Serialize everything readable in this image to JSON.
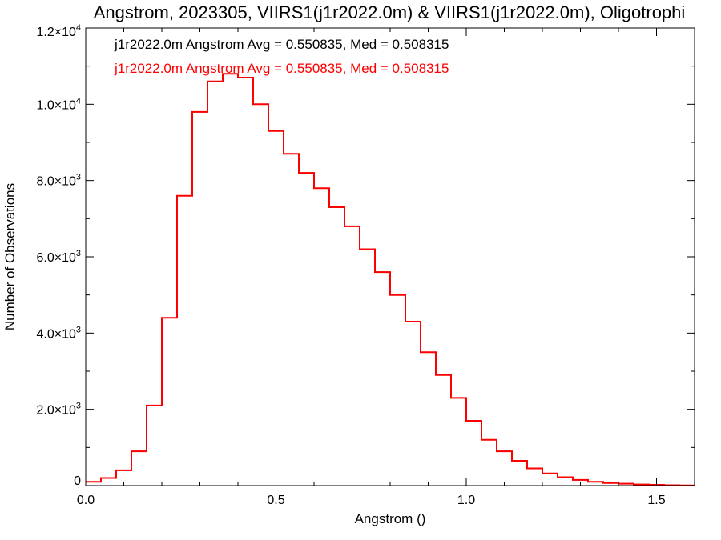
{
  "chart_data": {
    "type": "histogram",
    "title": "Angstrom, 2023305, VIIRS1(j1r2022.0m) & VIIRS1(j1r2022.0m), Oligotrophi",
    "xlabel": "Angstrom ()",
    "ylabel": "Number of Observations",
    "xlim": [
      0.0,
      1.6
    ],
    "ylim": [
      0,
      12000
    ],
    "x_ticks": [
      {
        "value": 0.0,
        "label": "0.0"
      },
      {
        "value": 0.5,
        "label": "0.5"
      },
      {
        "value": 1.0,
        "label": "1.0"
      },
      {
        "value": 1.5,
        "label": "1.5"
      }
    ],
    "y_ticks": [
      {
        "value": 0,
        "label": "0"
      },
      {
        "value": 2000,
        "label": "2.0×10",
        "exp": "3"
      },
      {
        "value": 4000,
        "label": "4.0×10",
        "exp": "3"
      },
      {
        "value": 6000,
        "label": "6.0×10",
        "exp": "3"
      },
      {
        "value": 8000,
        "label": "8.0×10",
        "exp": "3"
      },
      {
        "value": 10000,
        "label": "1.0×10",
        "exp": "4"
      },
      {
        "value": 12000,
        "label": "1.2×10",
        "exp": "4"
      }
    ],
    "annotations": [
      {
        "text": "j1r2022.0m Angstrom Avg = 0.550835, Med = 0.508315",
        "color": "#000000"
      },
      {
        "text": "j1r2022.0m Angstrom Avg = 0.550835, Med = 0.508315",
        "color": "#ff0000"
      }
    ],
    "bin_width": 0.04,
    "x": [
      0.0,
      0.04,
      0.08,
      0.12,
      0.16,
      0.2,
      0.24,
      0.28,
      0.32,
      0.36,
      0.4,
      0.44,
      0.48,
      0.52,
      0.56,
      0.6,
      0.64,
      0.68,
      0.72,
      0.76,
      0.8,
      0.84,
      0.88,
      0.92,
      0.96,
      1.0,
      1.04,
      1.08,
      1.12,
      1.16,
      1.2,
      1.24,
      1.28,
      1.32,
      1.36,
      1.4,
      1.44,
      1.48,
      1.52,
      1.56
    ],
    "series": [
      {
        "color": "#000000",
        "values": [
          100,
          200,
          400,
          900,
          2100,
          4400,
          7600,
          9800,
          10600,
          10800,
          10700,
          10000,
          9300,
          8700,
          8200,
          7800,
          7300,
          6800,
          6200,
          5600,
          5000,
          4300,
          3500,
          2900,
          2300,
          1700,
          1200,
          900,
          650,
          450,
          320,
          220,
          150,
          100,
          70,
          50,
          30,
          20,
          10,
          5
        ]
      },
      {
        "color": "#ff0000",
        "values": [
          100,
          200,
          400,
          900,
          2100,
          4400,
          7600,
          9800,
          10600,
          10800,
          10700,
          10000,
          9300,
          8700,
          8200,
          7800,
          7300,
          6800,
          6200,
          5600,
          5000,
          4300,
          3500,
          2900,
          2300,
          1700,
          1200,
          900,
          650,
          450,
          320,
          220,
          150,
          100,
          70,
          50,
          30,
          20,
          10,
          5
        ]
      }
    ]
  }
}
